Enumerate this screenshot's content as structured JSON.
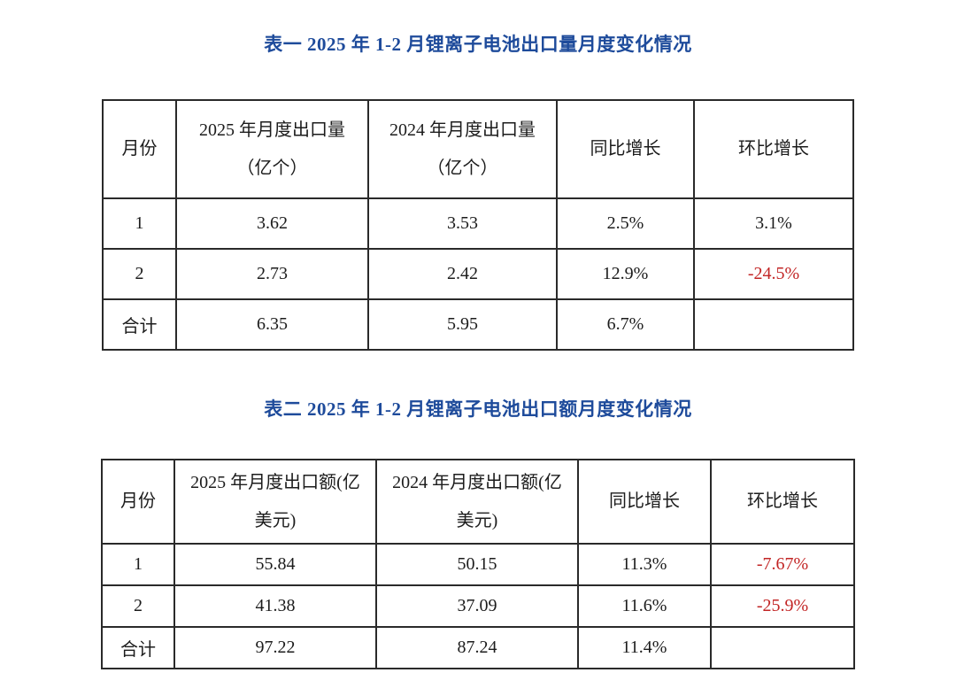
{
  "colors": {
    "title": "#1e4b9b",
    "negative": "#c22525",
    "text": "#1c1c1c",
    "border": "#2a2a2a",
    "background": "#ffffff"
  },
  "tables": [
    {
      "title": "表一 2025 年 1-2 月锂离子电池出口量月度变化情况",
      "headers": [
        "月份",
        "2025 年月度出口量\n（亿个）",
        "2024 年月度出口量\n（亿个）",
        "同比增长",
        "环比增长"
      ],
      "rows": [
        {
          "cells": [
            {
              "text": "1"
            },
            {
              "text": "3.62"
            },
            {
              "text": "3.53"
            },
            {
              "text": "2.5%"
            },
            {
              "text": "3.1%"
            }
          ]
        },
        {
          "cells": [
            {
              "text": "2"
            },
            {
              "text": "2.73"
            },
            {
              "text": "2.42"
            },
            {
              "text": "12.9%"
            },
            {
              "text": "-24.5%",
              "negative": true
            }
          ]
        },
        {
          "cells": [
            {
              "text": "合计"
            },
            {
              "text": "6.35"
            },
            {
              "text": "5.95"
            },
            {
              "text": "6.7%"
            },
            {
              "text": ""
            }
          ]
        }
      ]
    },
    {
      "title": "表二 2025 年 1-2 月锂离子电池出口额月度变化情况",
      "headers": [
        "月份",
        "2025 年月度出口额(亿\n美元)",
        "2024 年月度出口额(亿\n美元)",
        "同比增长",
        "环比增长"
      ],
      "rows": [
        {
          "cells": [
            {
              "text": "1"
            },
            {
              "text": "55.84"
            },
            {
              "text": "50.15"
            },
            {
              "text": "11.3%"
            },
            {
              "text": "-7.67%",
              "negative": true
            }
          ]
        },
        {
          "cells": [
            {
              "text": "2"
            },
            {
              "text": "41.38"
            },
            {
              "text": "37.09"
            },
            {
              "text": "11.6%"
            },
            {
              "text": "-25.9%",
              "negative": true
            }
          ]
        },
        {
          "cells": [
            {
              "text": "合计"
            },
            {
              "text": "97.22"
            },
            {
              "text": "87.24"
            },
            {
              "text": "11.4%"
            },
            {
              "text": ""
            }
          ]
        }
      ]
    }
  ]
}
